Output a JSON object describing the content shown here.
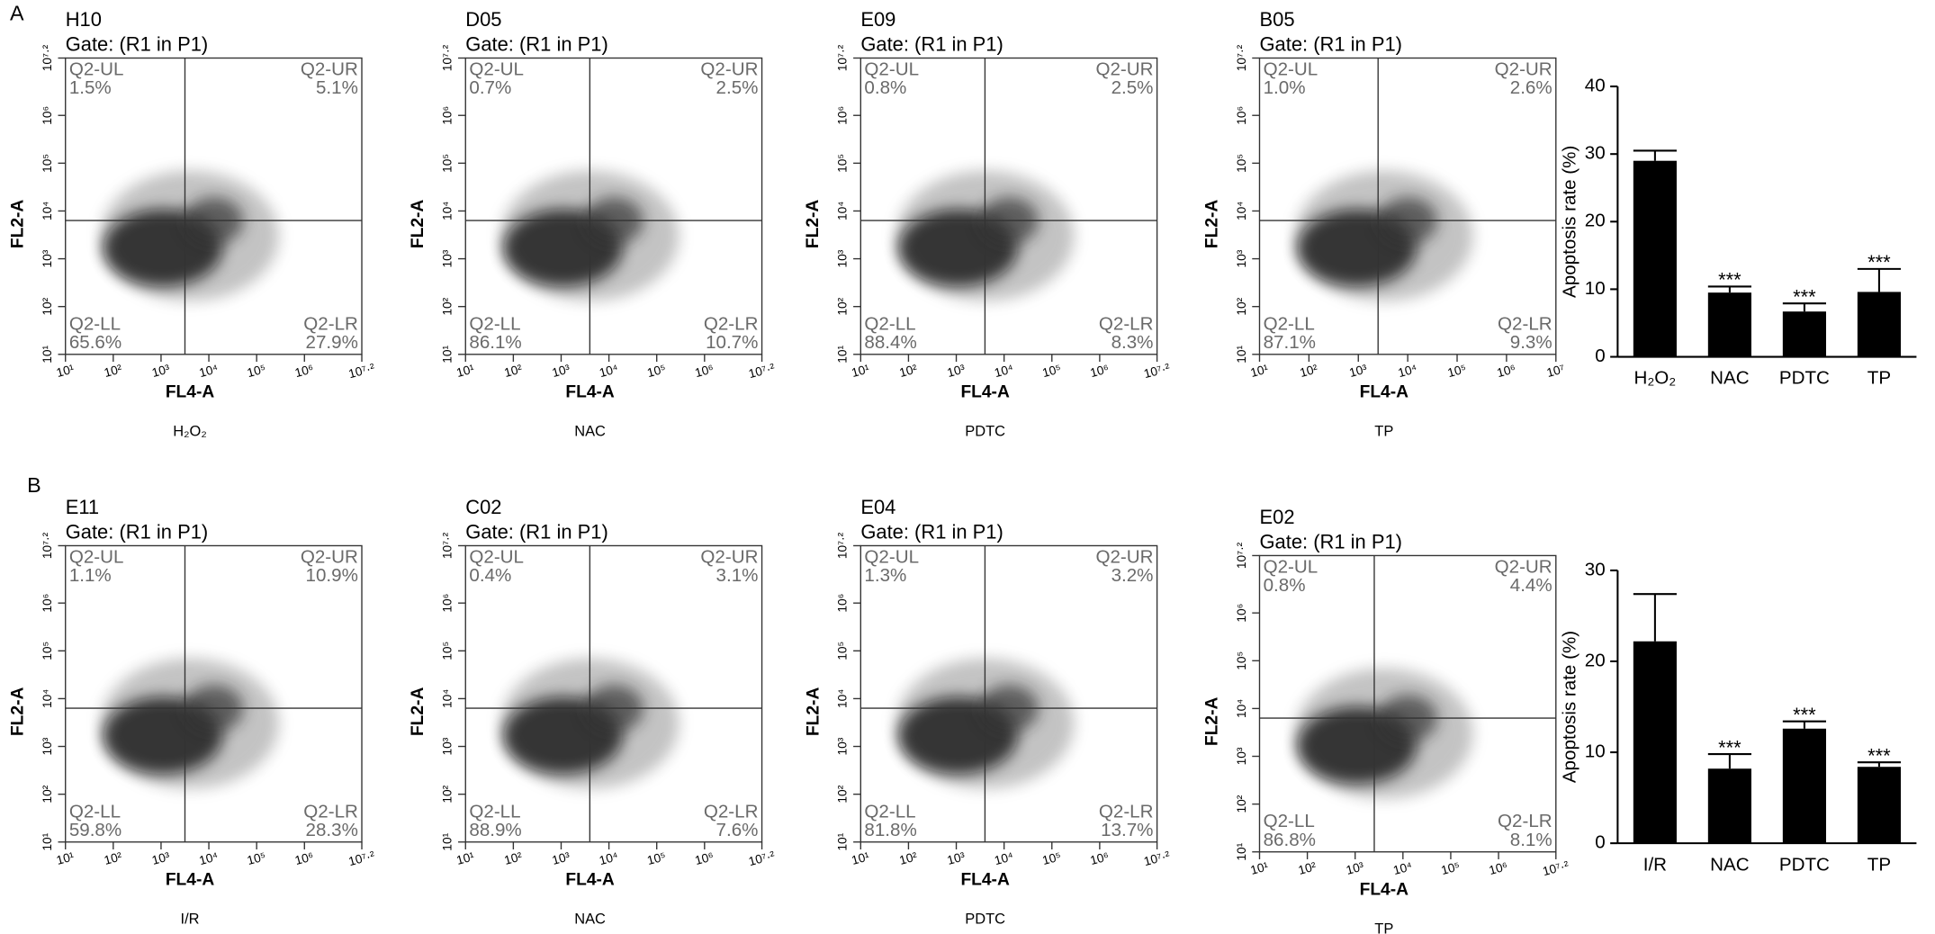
{
  "panel_labels": [
    "A",
    "B"
  ],
  "chart_data": [
    {
      "type": "scatter",
      "title": "H10",
      "subtitle": "Gate: (R1 in P1)",
      "xlabel": "FL4-A",
      "ylabel": "FL2-A",
      "caption": "H₂O₂",
      "xlim": [
        1,
        7.2
      ],
      "ylim": [
        1,
        7.2
      ],
      "gate": {
        "x": 3.5,
        "y": 3.8
      },
      "xticks": [
        {
          "value": 1,
          "label": "10¹"
        },
        {
          "value": 2,
          "label": "10²"
        },
        {
          "value": 3,
          "label": "10³"
        },
        {
          "value": 4,
          "label": "10⁴"
        },
        {
          "value": 5,
          "label": "10⁵"
        },
        {
          "value": 6,
          "label": "10⁶"
        },
        {
          "value": 7.2,
          "label": "10⁷·²"
        }
      ],
      "yticks": [
        {
          "value": 1,
          "label": "10¹"
        },
        {
          "value": 2,
          "label": "10²"
        },
        {
          "value": 3,
          "label": "10³"
        },
        {
          "value": 4,
          "label": "10⁴"
        },
        {
          "value": 5,
          "label": "10⁵"
        },
        {
          "value": 6,
          "label": "10⁶"
        },
        {
          "value": 7.2,
          "label": "10⁷·²"
        }
      ],
      "quadrants": [
        {
          "name": "Q2-UL",
          "label": "1.5%"
        },
        {
          "name": "Q2-UR",
          "label": "5.1%"
        },
        {
          "name": "Q2-LL",
          "label": "65.6%"
        },
        {
          "name": "Q2-LR",
          "label": "27.9%"
        }
      ]
    },
    {
      "type": "scatter",
      "title": "D05",
      "subtitle": "Gate: (R1 in P1)",
      "xlabel": "FL4-A",
      "ylabel": "FL2-A",
      "caption": "NAC",
      "xlim": [
        1,
        7.2
      ],
      "ylim": [
        1,
        7.2
      ],
      "gate": {
        "x": 3.6,
        "y": 3.8
      },
      "xticks": [
        {
          "value": 1,
          "label": "10¹"
        },
        {
          "value": 2,
          "label": "10²"
        },
        {
          "value": 3,
          "label": "10³"
        },
        {
          "value": 4,
          "label": "10⁴"
        },
        {
          "value": 5,
          "label": "10⁵"
        },
        {
          "value": 6,
          "label": "10⁶"
        },
        {
          "value": 7.2,
          "label": "10⁷·²"
        }
      ],
      "yticks": [
        {
          "value": 1,
          "label": "10¹"
        },
        {
          "value": 2,
          "label": "10²"
        },
        {
          "value": 3,
          "label": "10³"
        },
        {
          "value": 4,
          "label": "10⁴"
        },
        {
          "value": 5,
          "label": "10⁵"
        },
        {
          "value": 6,
          "label": "10⁶"
        },
        {
          "value": 7.2,
          "label": "10⁷·²"
        }
      ],
      "quadrants": [
        {
          "name": "Q2-UL",
          "label": "0.7%"
        },
        {
          "name": "Q2-UR",
          "label": "2.5%"
        },
        {
          "name": "Q2-LL",
          "label": "86.1%"
        },
        {
          "name": "Q2-LR",
          "label": "10.7%"
        }
      ]
    },
    {
      "type": "scatter",
      "title": "E09",
      "subtitle": "Gate: (R1 in P1)",
      "xlabel": "FL4-A",
      "ylabel": "FL2-A",
      "caption": "PDTC",
      "xlim": [
        1,
        7.2
      ],
      "ylim": [
        1,
        7.2
      ],
      "gate": {
        "x": 3.6,
        "y": 3.8
      },
      "xticks": [
        {
          "value": 1,
          "label": "10¹"
        },
        {
          "value": 2,
          "label": "10²"
        },
        {
          "value": 3,
          "label": "10³"
        },
        {
          "value": 4,
          "label": "10⁴"
        },
        {
          "value": 5,
          "label": "10⁵"
        },
        {
          "value": 6,
          "label": "10⁶"
        },
        {
          "value": 7.2,
          "label": "10⁷·²"
        }
      ],
      "yticks": [
        {
          "value": 1,
          "label": "10¹"
        },
        {
          "value": 2,
          "label": "10²"
        },
        {
          "value": 3,
          "label": "10³"
        },
        {
          "value": 4,
          "label": "10⁴"
        },
        {
          "value": 5,
          "label": "10⁵"
        },
        {
          "value": 6,
          "label": "10⁶"
        },
        {
          "value": 7.2,
          "label": "10⁷·²"
        }
      ],
      "quadrants": [
        {
          "name": "Q2-UL",
          "label": "0.8%"
        },
        {
          "name": "Q2-UR",
          "label": "2.5%"
        },
        {
          "name": "Q2-LL",
          "label": "88.4%"
        },
        {
          "name": "Q2-LR",
          "label": "8.3%"
        }
      ]
    },
    {
      "type": "scatter",
      "title": "B05",
      "subtitle": "Gate: (R1 in P1)",
      "xlabel": "FL4-A",
      "ylabel": "FL2-A",
      "caption": "TP",
      "xlim": [
        1,
        7
      ],
      "ylim": [
        1,
        7.2
      ],
      "gate": {
        "x": 3.4,
        "y": 3.8
      },
      "xticks": [
        {
          "value": 1,
          "label": "10¹"
        },
        {
          "value": 2,
          "label": "10²"
        },
        {
          "value": 3,
          "label": "10³"
        },
        {
          "value": 4,
          "label": "10⁴"
        },
        {
          "value": 5,
          "label": "10⁵"
        },
        {
          "value": 6,
          "label": "10⁶"
        },
        {
          "value": 7,
          "label": "10⁷"
        }
      ],
      "yticks": [
        {
          "value": 1,
          "label": "10¹"
        },
        {
          "value": 2,
          "label": "10²"
        },
        {
          "value": 3,
          "label": "10³"
        },
        {
          "value": 4,
          "label": "10⁴"
        },
        {
          "value": 5,
          "label": "10⁵"
        },
        {
          "value": 6,
          "label": "10⁶"
        },
        {
          "value": 7.2,
          "label": "10⁷·²"
        }
      ],
      "quadrants": [
        {
          "name": "Q2-UL",
          "label": "1.0%"
        },
        {
          "name": "Q2-UR",
          "label": "2.6%"
        },
        {
          "name": "Q2-LL",
          "label": "87.1%"
        },
        {
          "name": "Q2-LR",
          "label": "9.3%"
        }
      ]
    },
    {
      "type": "bar",
      "ylabel": "Apoptosis rate (%)",
      "categories": [
        "H₂O₂",
        "NAC",
        "PDTC",
        "TP"
      ],
      "values": [
        29,
        9.5,
        6.7,
        9.6
      ],
      "errors": [
        1.5,
        0.9,
        1.2,
        3.4
      ],
      "significance": [
        null,
        "***",
        "***",
        "***"
      ],
      "color": "#000000",
      "ylim": [
        0,
        40
      ],
      "yticks": [
        0,
        10,
        20,
        30,
        40
      ]
    },
    {
      "type": "scatter",
      "title": "E11",
      "subtitle": "Gate: (R1 in P1)",
      "xlabel": "FL4-A",
      "ylabel": "FL2-A",
      "caption": "I/R",
      "xlim": [
        1,
        7.2
      ],
      "ylim": [
        1,
        7.2
      ],
      "gate": {
        "x": 3.5,
        "y": 3.8
      },
      "xticks": [
        {
          "value": 1,
          "label": "10¹"
        },
        {
          "value": 2,
          "label": "10²"
        },
        {
          "value": 3,
          "label": "10³"
        },
        {
          "value": 4,
          "label": "10⁴"
        },
        {
          "value": 5,
          "label": "10⁵"
        },
        {
          "value": 6,
          "label": "10⁶"
        },
        {
          "value": 7.2,
          "label": "10⁷·²"
        }
      ],
      "yticks": [
        {
          "value": 1,
          "label": "10¹"
        },
        {
          "value": 2,
          "label": "10²"
        },
        {
          "value": 3,
          "label": "10³"
        },
        {
          "value": 4,
          "label": "10⁴"
        },
        {
          "value": 5,
          "label": "10⁵"
        },
        {
          "value": 6,
          "label": "10⁶"
        },
        {
          "value": 7.2,
          "label": "10⁷·²"
        }
      ],
      "quadrants": [
        {
          "name": "Q2-UL",
          "label": "1.1%"
        },
        {
          "name": "Q2-UR",
          "label": "10.9%"
        },
        {
          "name": "Q2-LL",
          "label": "59.8%"
        },
        {
          "name": "Q2-LR",
          "label": "28.3%"
        }
      ]
    },
    {
      "type": "scatter",
      "title": "C02",
      "subtitle": "Gate: (R1 in P1)",
      "xlabel": "FL4-A",
      "ylabel": "FL2-A",
      "caption": "NAC",
      "xlim": [
        1,
        7.2
      ],
      "ylim": [
        1,
        7.2
      ],
      "gate": {
        "x": 3.6,
        "y": 3.8
      },
      "xticks": [
        {
          "value": 1,
          "label": "10¹"
        },
        {
          "value": 2,
          "label": "10²"
        },
        {
          "value": 3,
          "label": "10³"
        },
        {
          "value": 4,
          "label": "10⁴"
        },
        {
          "value": 5,
          "label": "10⁵"
        },
        {
          "value": 6,
          "label": "10⁶"
        },
        {
          "value": 7.2,
          "label": "10⁷·²"
        }
      ],
      "yticks": [
        {
          "value": 1,
          "label": "10¹"
        },
        {
          "value": 2,
          "label": "10²"
        },
        {
          "value": 3,
          "label": "10³"
        },
        {
          "value": 4,
          "label": "10⁴"
        },
        {
          "value": 5,
          "label": "10⁵"
        },
        {
          "value": 6,
          "label": "10⁶"
        },
        {
          "value": 7.2,
          "label": "10⁷·²"
        }
      ],
      "quadrants": [
        {
          "name": "Q2-UL",
          "label": "0.4%"
        },
        {
          "name": "Q2-UR",
          "label": "3.1%"
        },
        {
          "name": "Q2-LL",
          "label": "88.9%"
        },
        {
          "name": "Q2-LR",
          "label": "7.6%"
        }
      ]
    },
    {
      "type": "scatter",
      "title": "E04",
      "subtitle": "Gate: (R1 in P1)",
      "xlabel": "FL4-A",
      "ylabel": "FL2-A",
      "caption": "PDTC",
      "xlim": [
        1,
        7.2
      ],
      "ylim": [
        1,
        7.2
      ],
      "gate": {
        "x": 3.6,
        "y": 3.8
      },
      "xticks": [
        {
          "value": 1,
          "label": "10¹"
        },
        {
          "value": 2,
          "label": "10²"
        },
        {
          "value": 3,
          "label": "10³"
        },
        {
          "value": 4,
          "label": "10⁴"
        },
        {
          "value": 5,
          "label": "10⁵"
        },
        {
          "value": 6,
          "label": "10⁶"
        },
        {
          "value": 7.2,
          "label": "10⁷·²"
        }
      ],
      "yticks": [
        {
          "value": 1,
          "label": "10¹"
        },
        {
          "value": 2,
          "label": "10²"
        },
        {
          "value": 3,
          "label": "10³"
        },
        {
          "value": 4,
          "label": "10⁴"
        },
        {
          "value": 5,
          "label": "10⁵"
        },
        {
          "value": 6,
          "label": "10⁶"
        },
        {
          "value": 7.2,
          "label": "10⁷·²"
        }
      ],
      "quadrants": [
        {
          "name": "Q2-UL",
          "label": "1.3%"
        },
        {
          "name": "Q2-UR",
          "label": "3.2%"
        },
        {
          "name": "Q2-LL",
          "label": "81.8%"
        },
        {
          "name": "Q2-LR",
          "label": "13.7%"
        }
      ]
    },
    {
      "type": "scatter",
      "title": "E02",
      "subtitle": "Gate: (R1 in P1)",
      "xlabel": "FL4-A",
      "ylabel": "FL2-A",
      "caption": "TP",
      "xlim": [
        1,
        7.2
      ],
      "ylim": [
        1,
        7.2
      ],
      "gate": {
        "x": 3.4,
        "y": 3.8
      },
      "xticks": [
        {
          "value": 1,
          "label": "10¹"
        },
        {
          "value": 2,
          "label": "10²"
        },
        {
          "value": 3,
          "label": "10³"
        },
        {
          "value": 4,
          "label": "10⁴"
        },
        {
          "value": 5,
          "label": "10⁵"
        },
        {
          "value": 6,
          "label": "10⁶"
        },
        {
          "value": 7.2,
          "label": "10⁷·²"
        }
      ],
      "yticks": [
        {
          "value": 1,
          "label": "10¹"
        },
        {
          "value": 2,
          "label": "10²"
        },
        {
          "value": 3,
          "label": "10³"
        },
        {
          "value": 4,
          "label": "10⁴"
        },
        {
          "value": 5,
          "label": "10⁵"
        },
        {
          "value": 6,
          "label": "10⁶"
        },
        {
          "value": 7.2,
          "label": "10⁷·²"
        }
      ],
      "quadrants": [
        {
          "name": "Q2-UL",
          "label": "0.8%"
        },
        {
          "name": "Q2-UR",
          "label": "4.4%"
        },
        {
          "name": "Q2-LL",
          "label": "86.8%"
        },
        {
          "name": "Q2-LR",
          "label": "8.1%"
        }
      ]
    },
    {
      "type": "bar",
      "ylabel": "Apoptosis rate (%)",
      "categories": [
        "I/R",
        "NAC",
        "PDTC",
        "TP"
      ],
      "values": [
        22.2,
        8.2,
        12.6,
        8.4
      ],
      "errors": [
        5.2,
        1.6,
        0.8,
        0.5
      ],
      "significance": [
        null,
        "***",
        "***",
        "***"
      ],
      "color": "#000000",
      "ylim": [
        0,
        30
      ],
      "yticks": [
        0,
        10,
        20,
        30
      ]
    }
  ]
}
